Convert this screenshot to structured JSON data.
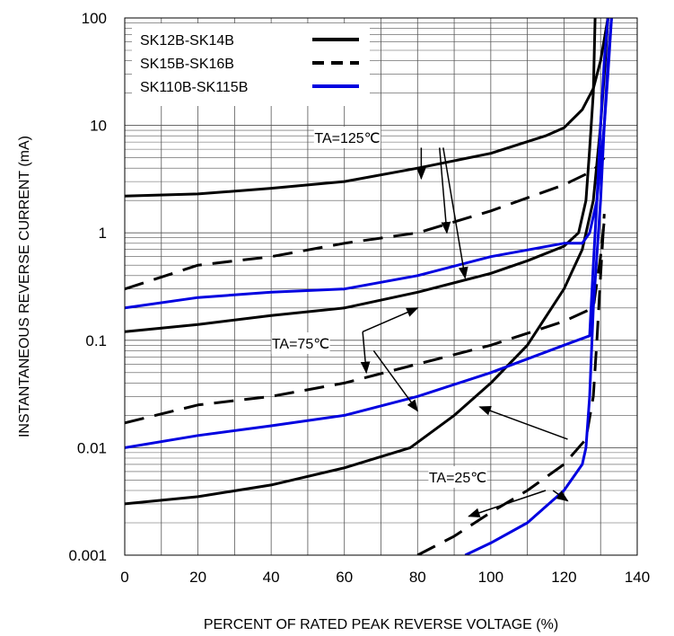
{
  "chart_data": {
    "type": "line",
    "title": "",
    "xlabel": "PERCENT OF RATED PEAK REVERSE VOLTAGE (%)",
    "ylabel": "INSTANTANEOUS REVERSE CURRENT (mA)",
    "xlim": [
      0,
      140
    ],
    "ylim": [
      0.001,
      100
    ],
    "yscale": "log",
    "grid": true,
    "x_ticks": [
      "0",
      "20",
      "40",
      "60",
      "80",
      "100",
      "120",
      "140"
    ],
    "y_ticks": [
      "0.001",
      "0.01",
      "0.1",
      "1",
      "10",
      "100"
    ],
    "legend_position": "top-left",
    "legend": [
      {
        "name": "SK12B-SK14B",
        "style": "solid",
        "color": "#000000"
      },
      {
        "name": "SK15B-SK16B",
        "style": "dashed",
        "color": "#000000"
      },
      {
        "name": "SK110B-SK115B",
        "style": "solid",
        "color": "#0000e0"
      }
    ],
    "series": [
      {
        "group": "SK12B-SK14B",
        "condition": "TA=125℃",
        "style": "solid",
        "color": "#000000",
        "points": [
          [
            0,
            2.2
          ],
          [
            20,
            2.3
          ],
          [
            40,
            2.6
          ],
          [
            60,
            3.0
          ],
          [
            80,
            4.0
          ],
          [
            100,
            5.5
          ],
          [
            115,
            8.0
          ],
          [
            120,
            9.5
          ],
          [
            125,
            14
          ],
          [
            128,
            22
          ],
          [
            130,
            40
          ],
          [
            132,
            100
          ]
        ]
      },
      {
        "group": "SK12B-SK14B",
        "condition": "TA=75℃",
        "style": "solid",
        "color": "#000000",
        "points": [
          [
            0,
            0.12
          ],
          [
            20,
            0.14
          ],
          [
            40,
            0.17
          ],
          [
            60,
            0.2
          ],
          [
            80,
            0.28
          ],
          [
            100,
            0.42
          ],
          [
            110,
            0.55
          ],
          [
            120,
            0.75
          ],
          [
            124,
            1.0
          ],
          [
            126,
            2
          ],
          [
            127,
            6
          ],
          [
            128,
            20
          ],
          [
            128.5,
            100
          ]
        ]
      },
      {
        "group": "SK12B-SK14B",
        "condition": "TA=25℃",
        "style": "solid",
        "color": "#000000",
        "points": [
          [
            0,
            0.003
          ],
          [
            20,
            0.0035
          ],
          [
            40,
            0.0045
          ],
          [
            60,
            0.0065
          ],
          [
            78,
            0.01
          ],
          [
            90,
            0.02
          ],
          [
            100,
            0.04
          ],
          [
            110,
            0.09
          ],
          [
            120,
            0.3
          ],
          [
            125,
            0.7
          ],
          [
            128,
            2
          ],
          [
            130,
            10
          ],
          [
            131,
            30
          ],
          [
            132,
            100
          ]
        ]
      },
      {
        "group": "SK15B-SK16B",
        "condition": "TA=125℃",
        "style": "dashed",
        "color": "#000000",
        "points": [
          [
            0,
            0.3
          ],
          [
            20,
            0.5
          ],
          [
            40,
            0.6
          ],
          [
            60,
            0.8
          ],
          [
            80,
            1.0
          ],
          [
            100,
            1.6
          ],
          [
            120,
            2.8
          ],
          [
            128,
            3.8
          ],
          [
            131,
            5
          ]
        ]
      },
      {
        "group": "SK15B-SK16B",
        "condition": "TA=75℃",
        "style": "dashed",
        "color": "#000000",
        "points": [
          [
            0,
            0.017
          ],
          [
            20,
            0.025
          ],
          [
            40,
            0.03
          ],
          [
            60,
            0.04
          ],
          [
            80,
            0.06
          ],
          [
            100,
            0.09
          ],
          [
            120,
            0.15
          ],
          [
            128,
            0.2
          ],
          [
            130,
            0.6
          ],
          [
            131,
            1.3
          ]
        ]
      },
      {
        "group": "SK15B-SK16B",
        "condition": "TA=25℃",
        "style": "dashed",
        "color": "#000000",
        "points": [
          [
            80,
            0.001
          ],
          [
            90,
            0.0015
          ],
          [
            100,
            0.0025
          ],
          [
            110,
            0.004
          ],
          [
            120,
            0.007
          ],
          [
            126,
            0.012
          ],
          [
            128,
            0.03
          ],
          [
            129,
            0.1
          ],
          [
            130,
            0.4
          ],
          [
            131,
            1.5
          ]
        ]
      },
      {
        "group": "SK110B-SK115B",
        "condition": "TA=125℃",
        "style": "solid",
        "color": "#0000e0",
        "points": [
          [
            0,
            0.2
          ],
          [
            20,
            0.25
          ],
          [
            40,
            0.28
          ],
          [
            60,
            0.3
          ],
          [
            80,
            0.4
          ],
          [
            100,
            0.6
          ],
          [
            120,
            0.8
          ],
          [
            125,
            0.8
          ],
          [
            127,
            1.0
          ],
          [
            129,
            2
          ],
          [
            131,
            10
          ],
          [
            132,
            30
          ],
          [
            133,
            100
          ]
        ]
      },
      {
        "group": "SK110B-SK115B",
        "condition": "TA=75℃",
        "style": "solid",
        "color": "#0000e0",
        "points": [
          [
            0,
            0.01
          ],
          [
            20,
            0.013
          ],
          [
            40,
            0.016
          ],
          [
            60,
            0.02
          ],
          [
            80,
            0.03
          ],
          [
            100,
            0.05
          ],
          [
            120,
            0.09
          ],
          [
            127,
            0.11
          ],
          [
            128,
            0.5
          ],
          [
            129,
            2
          ],
          [
            130,
            10
          ],
          [
            131,
            40
          ],
          [
            132,
            100
          ]
        ]
      },
      {
        "group": "SK110B-SK115B",
        "condition": "TA=25℃",
        "style": "solid",
        "color": "#0000e0",
        "points": [
          [
            93,
            0.001
          ],
          [
            100,
            0.0013
          ],
          [
            110,
            0.002
          ],
          [
            120,
            0.004
          ],
          [
            125,
            0.007
          ],
          [
            126,
            0.01
          ],
          [
            127,
            0.03
          ],
          [
            128,
            0.2
          ],
          [
            130,
            2
          ],
          [
            131,
            10
          ],
          [
            132,
            40
          ],
          [
            133,
            100
          ]
        ]
      }
    ],
    "annotations": [
      {
        "text": "TA=125℃",
        "arrows_to": [
          [
            81,
            3.2
          ],
          [
            88,
            1.0
          ],
          [
            93,
            0.38
          ]
        ],
        "arrow_from": [
          [
            81,
            6.2
          ],
          [
            86,
            6.2
          ],
          [
            87,
            6.2
          ]
        ]
      },
      {
        "text": "TA=75℃",
        "arrows_to": [
          [
            80,
            0.2
          ],
          [
            66,
            0.05
          ],
          [
            80,
            0.022
          ]
        ],
        "arrow_from": [
          [
            65,
            0.12
          ],
          [
            65,
            0.12
          ],
          [
            68,
            0.08
          ]
        ]
      },
      {
        "text": "TA=25℃",
        "arrows_to": [
          [
            97,
            0.024
          ],
          [
            94,
            0.0023
          ],
          [
            121,
            0.0032
          ]
        ],
        "arrow_from": [
          [
            121,
            0.012
          ],
          [
            115,
            0.004
          ],
          [
            117,
            0.004
          ]
        ]
      }
    ]
  }
}
